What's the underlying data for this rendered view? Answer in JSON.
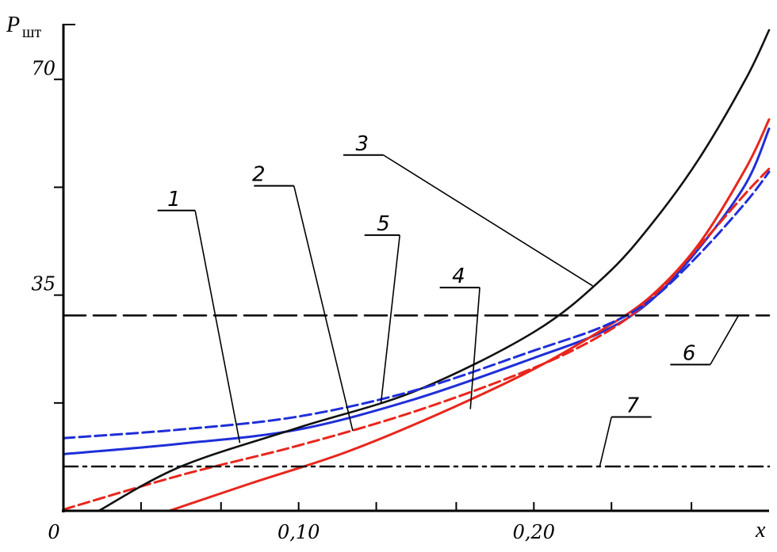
{
  "chart_data": {
    "type": "line",
    "ylabel_main": "P",
    "ylabel_sub": "шт",
    "xlabel": "x",
    "xlim": [
      0,
      0.3
    ],
    "ylim": [
      0,
      78
    ],
    "x_tick_labels": [
      {
        "x": 0,
        "label": "0"
      },
      {
        "x": 0.1,
        "label": "0,10"
      },
      {
        "x": 0.2,
        "label": "0,20"
      }
    ],
    "x_minor_ticks": [
      0.033,
      0.067,
      0.133,
      0.167,
      0.233,
      0.267
    ],
    "y_tick_labels": [
      {
        "y": 35,
        "label": "35"
      },
      {
        "y": 70,
        "label": "70"
      }
    ],
    "y_minor_ticks": [
      17.5,
      52.5
    ],
    "colors": {
      "black": "#111111",
      "blue": "#1f2fd8",
      "red": "#e8261c"
    },
    "series": [
      {
        "key": "s1",
        "color": "blue",
        "dash": "solid",
        "x": [
          0,
          0.05,
          0.1,
          0.15,
          0.2,
          0.23,
          0.25,
          0.27,
          0.29,
          0.3
        ],
        "y": [
          9.2,
          10.9,
          13.2,
          18.2,
          24.8,
          29.2,
          34.2,
          42.5,
          53.0,
          62.0
        ]
      },
      {
        "key": "s2",
        "color": "red",
        "dash": "dashed",
        "x": [
          0,
          0.05,
          0.1,
          0.15,
          0.2,
          0.23,
          0.25,
          0.27,
          0.29,
          0.3
        ],
        "y": [
          0.2,
          5.8,
          10.6,
          16.2,
          23.2,
          28.8,
          34.5,
          42.8,
          51.5,
          55.5
        ]
      },
      {
        "key": "s3",
        "color": "black",
        "dash": "solid",
        "x": [
          0.015,
          0.05,
          0.1,
          0.15,
          0.2,
          0.23,
          0.25,
          0.27,
          0.29,
          0.3
        ],
        "y": [
          0,
          7.2,
          13.5,
          19.5,
          29.0,
          38.0,
          46.5,
          57.0,
          70.0,
          78.0
        ]
      },
      {
        "key": "s4",
        "color": "red",
        "dash": "solid",
        "x": [
          0.045,
          0.08,
          0.12,
          0.16,
          0.2,
          0.23,
          0.25,
          0.27,
          0.29,
          0.3
        ],
        "y": [
          0,
          4.5,
          9.5,
          15.8,
          23.0,
          29.6,
          34.9,
          43.2,
          55.5,
          63.5
        ]
      },
      {
        "key": "s5",
        "color": "blue",
        "dash": "dashed",
        "x": [
          0,
          0.05,
          0.1,
          0.15,
          0.2,
          0.23,
          0.25,
          0.27,
          0.29,
          0.3
        ],
        "y": [
          11.8,
          13.2,
          15.3,
          19.6,
          26.0,
          30.0,
          34.3,
          41.5,
          50.0,
          55.0
        ]
      },
      {
        "key": "s6",
        "color": "black",
        "dash": "longdash",
        "x": [
          0,
          0.3
        ],
        "y": [
          31.7,
          31.7
        ]
      },
      {
        "key": "s7",
        "color": "black",
        "dash": "dashdot",
        "x": [
          0,
          0.3
        ],
        "y": [
          7.2,
          7.2
        ]
      }
    ],
    "annotations": [
      {
        "text": "1",
        "label_x": 0.047,
        "label_y": 49.5,
        "under": [
          0.04,
          0.056
        ],
        "target_x": 0.075,
        "target_y": 11.0
      },
      {
        "text": "2",
        "label_x": 0.083,
        "label_y": 53.5,
        "under": [
          0.081,
          0.098
        ],
        "target_x": 0.123,
        "target_y": 13.0
      },
      {
        "text": "3",
        "label_x": 0.127,
        "label_y": 58.5,
        "under": [
          0.119,
          0.136
        ],
        "target_x": 0.225,
        "target_y": 36.5
      },
      {
        "text": "5",
        "label_x": 0.136,
        "label_y": 45.5,
        "under": [
          0.128,
          0.143
        ],
        "target_x": 0.135,
        "target_y": 17.5
      },
      {
        "text": "4",
        "label_x": 0.168,
        "label_y": 37.0,
        "under": [
          0.16,
          0.177
        ],
        "target_x": 0.173,
        "target_y": 16.5
      },
      {
        "text": "6",
        "label_x": 0.266,
        "label_y": 24.5,
        "under": [
          0.258,
          0.275
        ],
        "target_x": 0.287,
        "target_y": 31.7
      },
      {
        "text": "7",
        "label_x": 0.242,
        "label_y": 16.0,
        "under": [
          0.233,
          0.25
        ],
        "target_x": 0.228,
        "target_y": 7.2
      }
    ]
  }
}
